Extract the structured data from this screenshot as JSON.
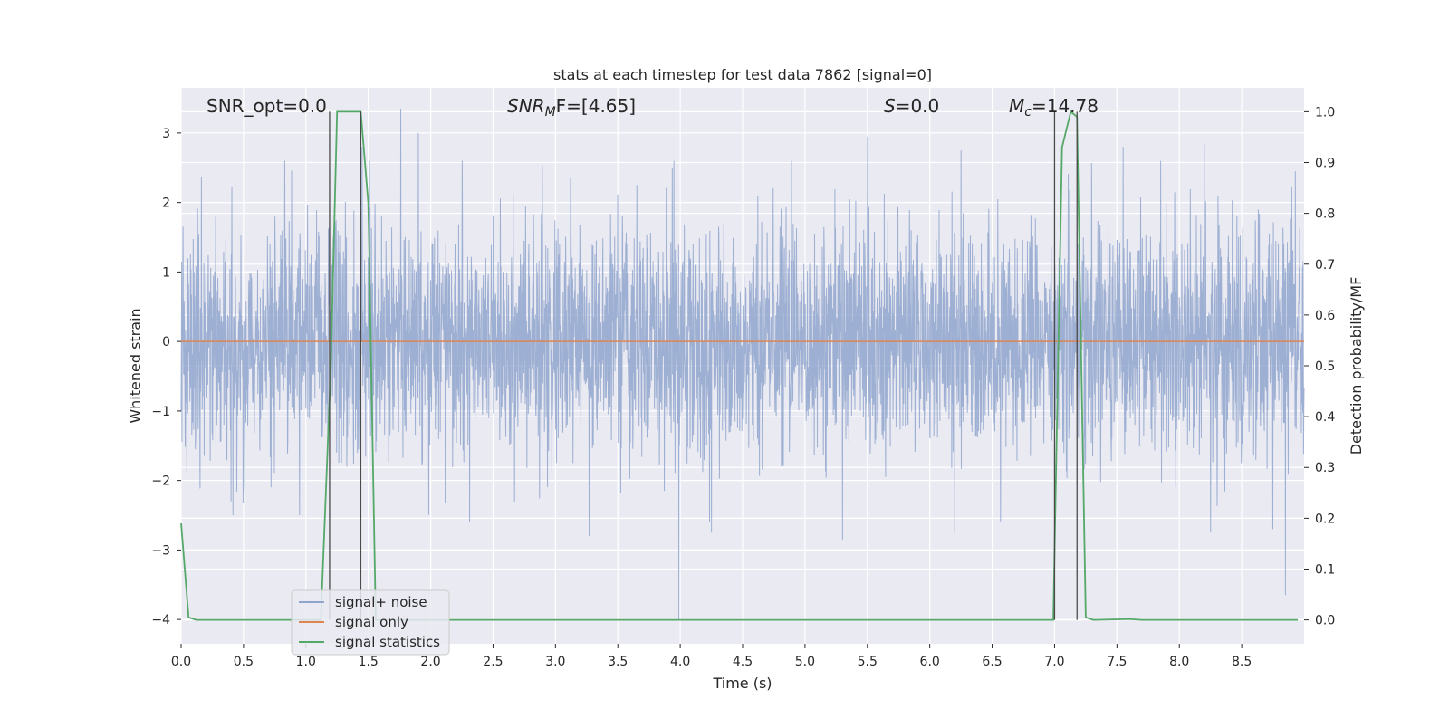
{
  "chart_data": {
    "type": "line",
    "title": "stats at each timestep for test data 7862 [signal=0]",
    "xlabel": "Time (s)",
    "ylabel_left": "Whitened strain",
    "ylabel_right": "Detection probability/MF",
    "xlim": [
      0,
      9.0
    ],
    "ylim_left": [
      -4.35,
      3.65
    ],
    "ylim_right": [
      -0.047,
      1.047
    ],
    "x_ticks": [
      0.0,
      0.5,
      1.0,
      1.5,
      2.0,
      2.5,
      3.0,
      3.5,
      4.0,
      4.5,
      5.0,
      5.5,
      6.0,
      6.5,
      7.0,
      7.5,
      8.0,
      8.5
    ],
    "x_tick_labels": [
      "0.0",
      "0.5",
      "1.0",
      "1.5",
      "2.0",
      "2.5",
      "3.0",
      "3.5",
      "4.0",
      "4.5",
      "5.0",
      "5.5",
      "6.0",
      "6.5",
      "7.0",
      "7.5",
      "8.0",
      "8.5"
    ],
    "y_left_ticks": [
      3,
      2,
      1,
      0,
      -1,
      -2,
      -3,
      -4
    ],
    "y_left_tick_labels": [
      "3",
      "2",
      "1",
      "0",
      "−1",
      "−2",
      "−3",
      "−4"
    ],
    "y_right_ticks": [
      1.0,
      0.9,
      0.8,
      0.7,
      0.6,
      0.5,
      0.4,
      0.3,
      0.2,
      0.1,
      0.0
    ],
    "y_right_tick_labels": [
      "1.0",
      "0.9",
      "0.8",
      "0.7",
      "0.6",
      "0.5",
      "0.4",
      "0.3",
      "0.2",
      "0.1",
      "0.0"
    ],
    "grid": true,
    "legend_position": "lower-left",
    "annotations": {
      "snr_opt": "SNR_opt=0.0",
      "snr_mf_sym": "SNR",
      "snr_mf_sub": "M",
      "snr_mf_rest": "F=[4.65]",
      "s_sym": "S",
      "s_rest": "=0.0",
      "mc_sym": "M",
      "mc_sub": "c",
      "mc_rest": "=14.78"
    },
    "vertical_markers_x": [
      1.19,
      1.44,
      7.0,
      7.18
    ],
    "series": [
      {
        "name": "signal+ noise",
        "color": "#8fa5cc",
        "axis": "left",
        "description_samples": 4096,
        "spikes": [
          {
            "x": 0.4,
            "y": -2.3
          },
          {
            "x": 0.72,
            "y": -2.1
          },
          {
            "x": 0.83,
            "y": 2.6
          },
          {
            "x": 0.95,
            "y": -2.5
          },
          {
            "x": 1.45,
            "y": 2.8
          },
          {
            "x": 1.9,
            "y": 3.0
          },
          {
            "x": 1.76,
            "y": 3.35
          },
          {
            "x": 3.27,
            "y": -2.8
          },
          {
            "x": 3.99,
            "y": -4.0
          },
          {
            "x": 4.25,
            "y": 3.0
          },
          {
            "x": 4.25,
            "y": -2.75
          },
          {
            "x": 5.3,
            "y": -2.85
          },
          {
            "x": 5.5,
            "y": 2.95
          },
          {
            "x": 6.25,
            "y": 2.75
          },
          {
            "x": 6.2,
            "y": -2.75
          },
          {
            "x": 7.55,
            "y": 2.8
          },
          {
            "x": 8.2,
            "y": 2.85
          },
          {
            "x": 8.25,
            "y": -2.75
          },
          {
            "x": 8.75,
            "y": -2.7
          },
          {
            "x": 8.85,
            "y": -3.65
          },
          {
            "x": 8.93,
            "y": 2.45
          }
        ]
      },
      {
        "name": "signal only",
        "color": "#dd8452",
        "axis": "left",
        "x": [
          0.0,
          9.0
        ],
        "y": [
          0.0,
          0.0
        ]
      },
      {
        "name": "signal statistics",
        "color": "#55a868",
        "axis": "right",
        "x": [
          0.0,
          0.06,
          0.12,
          1.12,
          1.2,
          1.25,
          1.44,
          1.5,
          1.56,
          1.62,
          6.99,
          7.06,
          7.13,
          7.18,
          7.25,
          7.31,
          7.6,
          7.7,
          8.95
        ],
        "y": [
          0.19,
          0.005,
          0.0,
          0.0,
          0.5,
          1.0,
          1.0,
          0.82,
          0.0,
          0.0,
          0.0,
          0.93,
          1.0,
          0.99,
          0.005,
          0.0,
          0.0015,
          0.0,
          0.0
        ]
      }
    ]
  }
}
